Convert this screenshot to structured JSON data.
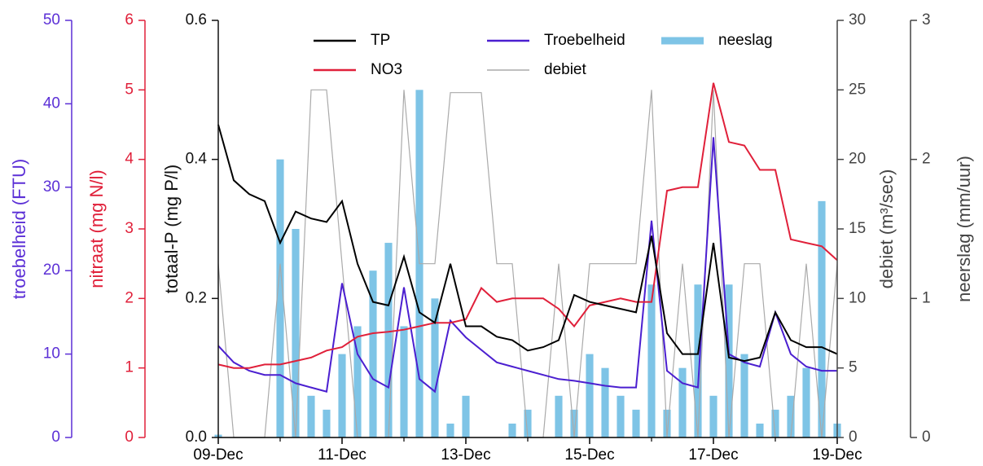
{
  "chart_data": {
    "type": "line",
    "xlim": [
      0,
      10
    ],
    "xticks": [
      {
        "value": 0,
        "label": "09-Dec"
      },
      {
        "value": 2,
        "label": "11-Dec"
      },
      {
        "value": 4,
        "label": "13-Dec"
      },
      {
        "value": 6,
        "label": "15-Dec"
      },
      {
        "value": 8,
        "label": "17-Dec"
      },
      {
        "value": 10,
        "label": "19-Dec"
      }
    ],
    "xminorticks": [
      1,
      3,
      5,
      7,
      9
    ],
    "x": [
      0,
      0.25,
      0.5,
      0.75,
      1,
      1.25,
      1.5,
      1.75,
      2,
      2.25,
      2.5,
      2.75,
      3,
      3.25,
      3.5,
      3.75,
      4,
      4.25,
      4.5,
      4.75,
      5,
      5.25,
      5.5,
      5.75,
      6,
      6.25,
      6.5,
      6.75,
      7,
      7.25,
      7.5,
      7.75,
      8,
      8.25,
      8.5,
      8.75,
      9,
      9.25,
      9.5,
      9.75,
      10
    ],
    "yaxes": [
      {
        "label": "troebelheid (FTU)",
        "color": "#5b2fd6",
        "ylim": [
          0,
          50
        ],
        "yticks": [
          0,
          10,
          20,
          30,
          40,
          50
        ]
      },
      {
        "label": "nitraat (mg N/l)",
        "color": "#e0203a",
        "ylim": [
          0,
          6
        ],
        "yticks": [
          0,
          1,
          2,
          3,
          4,
          5,
          6
        ]
      },
      {
        "label": "totaal-P (mg P/l)",
        "color": "#111111",
        "ylim": [
          0,
          0.6
        ],
        "yticks": [
          {
            "value": 0,
            "label": "0.0"
          },
          0.2,
          0.4,
          0.6
        ]
      },
      {
        "label": "debiet (m³/sec)",
        "color": "#444444",
        "ylim": [
          0,
          30
        ],
        "yticks": [
          0,
          5,
          10,
          15,
          20,
          25,
          30
        ]
      },
      {
        "label": "neerslag (mm/uur)",
        "color": "#444444",
        "ylim": [
          0,
          3
        ],
        "yticks": [
          0,
          1,
          2,
          3
        ]
      }
    ],
    "series": [
      {
        "name": "TP",
        "color": "#000000",
        "axis": 2,
        "type": "line",
        "values": [
          0.45,
          0.37,
          0.35,
          0.34,
          0.28,
          0.325,
          0.315,
          0.31,
          0.34,
          0.25,
          0.195,
          0.19,
          0.26,
          0.18,
          0.165,
          0.25,
          0.16,
          0.16,
          0.145,
          0.14,
          0.125,
          0.13,
          0.14,
          0.205,
          0.195,
          0.19,
          0.185,
          0.18,
          0.29,
          0.15,
          0.12,
          0.12,
          0.28,
          0.115,
          0.11,
          0.115,
          0.18,
          0.14,
          0.13,
          0.13,
          0.12
        ]
      },
      {
        "name": "NO3",
        "color": "#e0203a",
        "axis": 1,
        "type": "line",
        "values": [
          1.05,
          1.0,
          1.0,
          1.05,
          1.05,
          1.1,
          1.15,
          1.25,
          1.3,
          1.45,
          1.5,
          1.52,
          1.55,
          1.6,
          1.65,
          1.65,
          1.7,
          2.15,
          1.95,
          2.0,
          2.0,
          2.0,
          1.85,
          1.6,
          1.9,
          1.95,
          2.0,
          1.95,
          1.95,
          3.55,
          3.6,
          3.6,
          5.1,
          4.25,
          4.2,
          3.85,
          3.85,
          2.85,
          2.8,
          2.75,
          2.55
        ]
      },
      {
        "name": "Troebelheid",
        "color": "#4b1fd0",
        "axis": 0,
        "type": "line",
        "values": [
          11,
          9,
          8,
          7.5,
          7.5,
          6.5,
          6,
          5.5,
          18.5,
          10,
          7,
          6,
          18,
          7,
          5.5,
          14,
          12,
          10.5,
          9,
          8.5,
          8,
          7.5,
          7,
          6.8,
          6.5,
          6.2,
          6,
          6,
          26,
          8,
          6.5,
          6,
          36,
          10,
          9,
          8.5,
          15,
          10,
          8.5,
          8,
          8
        ]
      },
      {
        "name": "debiet",
        "color": "#aaaaaa",
        "axis": 3,
        "type": "line",
        "values": [
          12.5,
          0,
          0,
          0,
          12.5,
          0,
          25,
          25,
          12.5,
          0,
          0,
          0,
          25,
          12.5,
          12.5,
          24.8,
          24.8,
          24.8,
          12.5,
          12.5,
          0,
          0,
          12.5,
          0,
          12.5,
          12.5,
          12.5,
          12.5,
          25,
          0,
          12.5,
          0,
          25,
          0,
          12.5,
          12.5,
          0,
          0,
          12.5,
          0,
          12.5
        ]
      },
      {
        "name": "neeslag",
        "color": "#7ec4e6",
        "axis": 4,
        "type": "bar",
        "values": [
          0.02,
          0,
          0,
          0,
          2.0,
          1.5,
          0.3,
          0.2,
          0.6,
          0.8,
          1.2,
          1.4,
          0.8,
          2.5,
          1.0,
          0.1,
          0.3,
          0,
          0,
          0.1,
          0.2,
          0,
          0.3,
          0.2,
          0.6,
          0.5,
          0.3,
          0.2,
          1.1,
          0.2,
          0.5,
          1.1,
          0.3,
          1.1,
          0.6,
          0.1,
          0.2,
          0.3,
          0.5,
          1.7,
          0.1
        ]
      }
    ]
  }
}
